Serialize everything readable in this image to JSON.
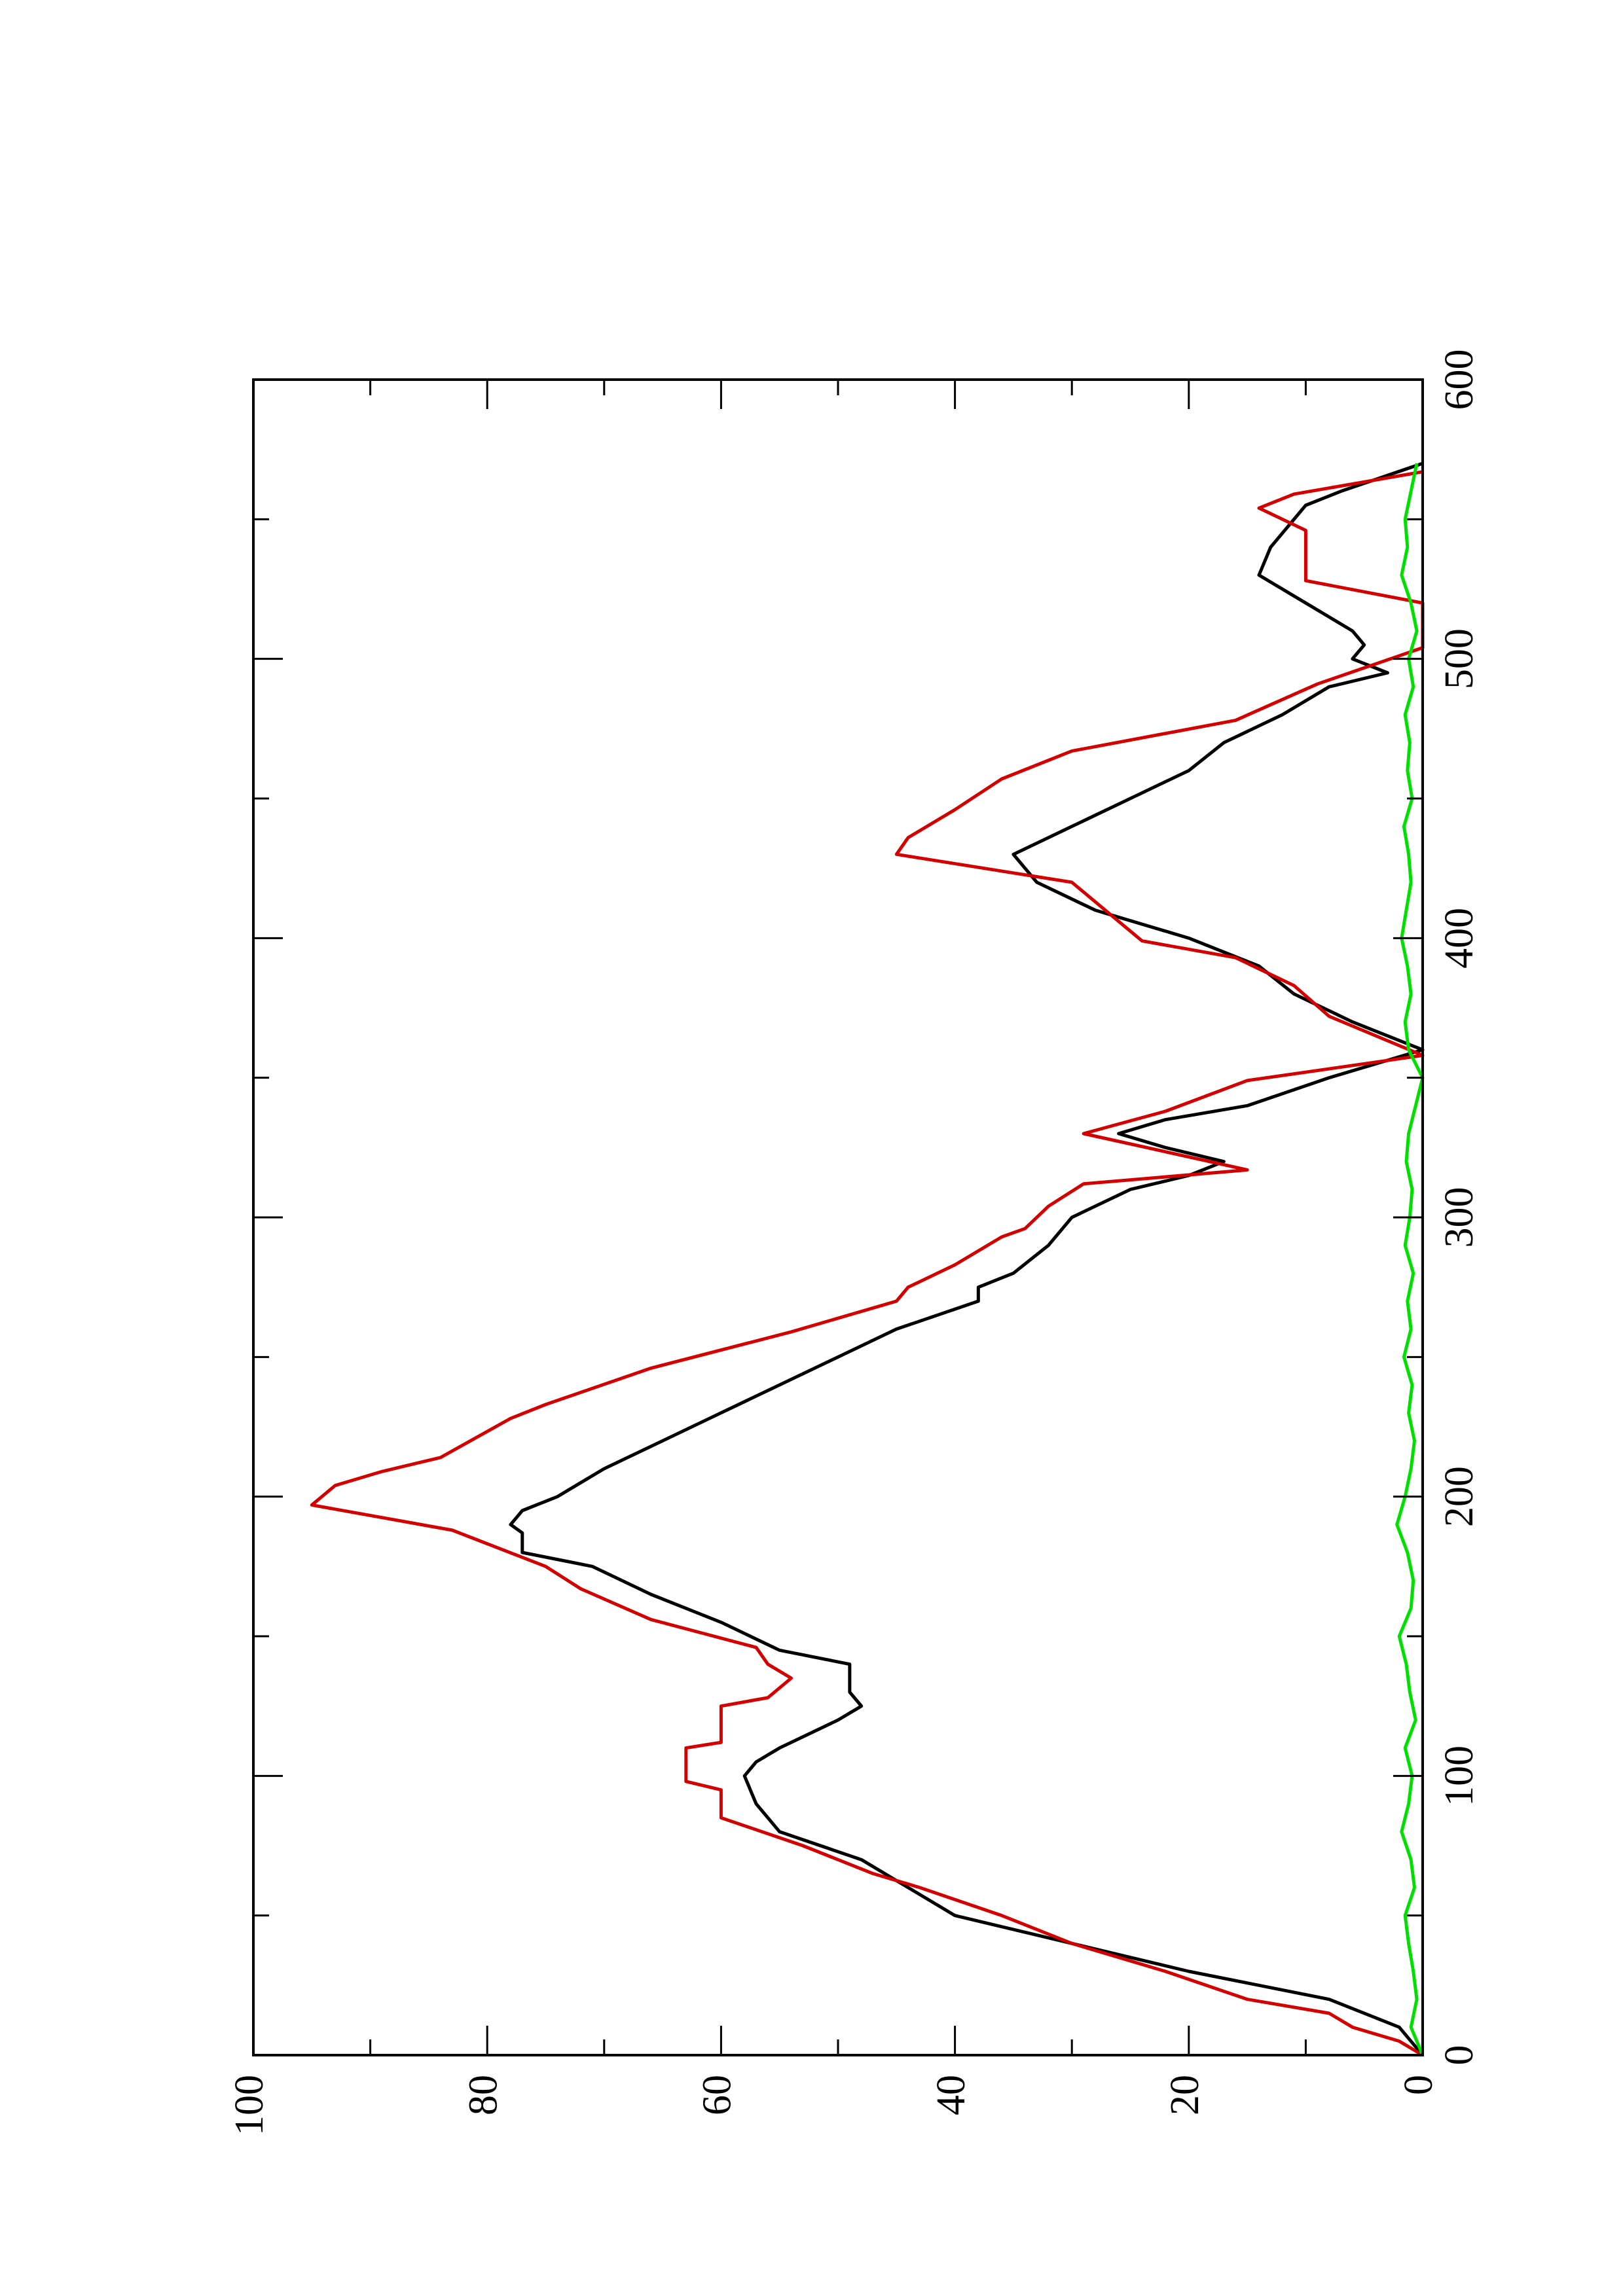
{
  "chart_data": {
    "type": "line",
    "xlim": [
      0,
      600
    ],
    "ylim": [
      0,
      100
    ],
    "xticks": [
      0,
      100,
      200,
      300,
      400,
      500,
      600
    ],
    "yticks": [
      0,
      20,
      40,
      60,
      80,
      100
    ],
    "xminorticks": [
      50,
      150,
      250,
      350,
      450,
      550
    ],
    "yminorticks": [
      10,
      30,
      50,
      70,
      90
    ],
    "rotated": true,
    "series": [
      {
        "color": "#000000",
        "x": [
          0,
          10,
          20,
          30,
          40,
          50,
          60,
          70,
          80,
          90,
          100,
          105,
          110,
          120,
          125,
          130,
          140,
          145,
          155,
          165,
          175,
          180,
          187,
          190,
          195,
          200,
          210,
          220,
          230,
          240,
          250,
          260,
          270,
          275,
          280,
          290,
          300,
          310,
          315,
          320,
          325,
          330,
          335,
          340,
          350,
          360,
          370,
          380,
          390,
          400,
          410,
          420,
          430,
          440,
          450,
          460,
          470,
          480,
          490,
          495,
          500,
          505,
          510,
          520,
          530,
          540,
          550,
          555,
          560,
          570
        ],
        "values": [
          0,
          2,
          8,
          20,
          30,
          40,
          44,
          48,
          55,
          57,
          58,
          57,
          55,
          50,
          48,
          49,
          49,
          55,
          60,
          66,
          71,
          77,
          77,
          78,
          77,
          74,
          70,
          65,
          60,
          55,
          50,
          45,
          38,
          38,
          35,
          32,
          30,
          25,
          20,
          17,
          22,
          26,
          22,
          15,
          8,
          0,
          6,
          11,
          14,
          20,
          28,
          33,
          35,
          30,
          25,
          20,
          17,
          12,
          8,
          3,
          6,
          5,
          6,
          10,
          14,
          13,
          11,
          10,
          7,
          0
        ]
      },
      {
        "color": "#d40000",
        "x": [
          0,
          5,
          10,
          15,
          20,
          30,
          40,
          50,
          60,
          65,
          75,
          85,
          95,
          98,
          110,
          112,
          125,
          128,
          135,
          140,
          146,
          156,
          167,
          175,
          188,
          197,
          204,
          209,
          214,
          228,
          233,
          246,
          259,
          270,
          275,
          283,
          293,
          296,
          304,
          312,
          317,
          330,
          338,
          349,
          358,
          372,
          383,
          393,
          399,
          420,
          430,
          436,
          446,
          457,
          467,
          478,
          491,
          504,
          520,
          528,
          546,
          554,
          559,
          567
        ],
        "values": [
          0,
          2,
          6,
          8,
          15,
          22,
          30,
          36,
          43,
          47,
          53,
          60,
          60,
          63,
          63,
          60,
          60,
          56,
          54,
          56,
          57,
          66,
          72,
          75,
          83,
          95,
          93,
          89,
          84,
          78,
          75,
          66,
          54,
          45,
          44,
          40,
          36,
          34,
          32,
          29,
          15,
          29,
          22,
          15,
          0,
          8,
          11,
          16,
          24,
          30,
          45,
          44,
          40,
          36,
          30,
          16,
          9,
          0,
          0,
          10,
          10,
          14,
          11,
          0
        ]
      },
      {
        "color": "#00e000",
        "x": [
          0,
          10,
          20,
          30,
          40,
          50,
          60,
          70,
          80,
          90,
          100,
          110,
          120,
          130,
          140,
          150,
          160,
          170,
          180,
          190,
          200,
          210,
          220,
          230,
          240,
          250,
          260,
          270,
          280,
          290,
          300,
          310,
          320,
          330,
          340,
          350,
          360,
          370,
          380,
          390,
          400,
          410,
          420,
          430,
          440,
          450,
          460,
          470,
          480,
          490,
          500,
          510,
          520,
          530,
          540,
          550,
          560,
          570
        ],
        "values": [
          0,
          1,
          0.5,
          0.8,
          1.2,
          1.5,
          0.7,
          1,
          1.8,
          1.2,
          0.9,
          1.5,
          0.6,
          1.1,
          1.4,
          2,
          1,
          0.8,
          1.3,
          2.2,
          1.5,
          1,
          0.7,
          1.2,
          0.9,
          1.6,
          1,
          1.3,
          0.8,
          1.5,
          1.1,
          0.9,
          1.4,
          1.2,
          0.6,
          0,
          1.2,
          1.5,
          1,
          1.3,
          1.8,
          1.4,
          1,
          1.2,
          1.6,
          0.9,
          1.3,
          1.1,
          1.5,
          0.8,
          1.2,
          0.5,
          1,
          1.8,
          1.3,
          1.5,
          1,
          0.5
        ]
      }
    ]
  }
}
